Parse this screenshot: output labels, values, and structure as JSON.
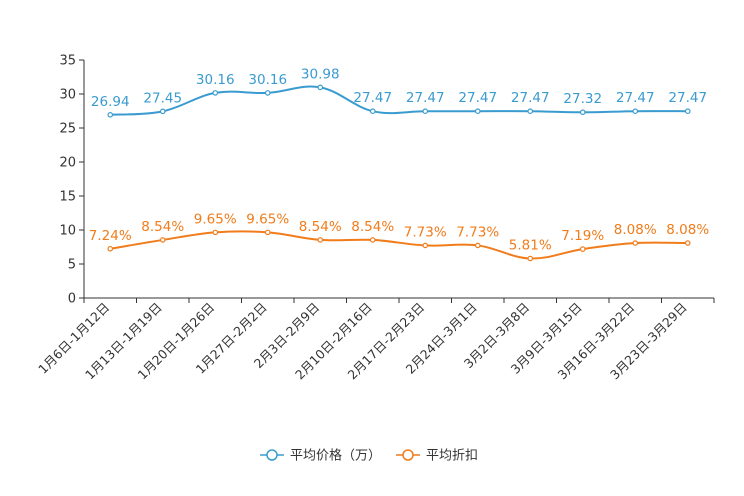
{
  "chart_data": {
    "type": "line",
    "categories": [
      "1月6日-1月12日",
      "1月13日-1月19日",
      "1月20日-1月26日",
      "1月27日-2月2日",
      "2月3日-2月9日",
      "2月10日-2月16日",
      "2月17日-2月23日",
      "2月24日-3月1日",
      "3月2日-3月8日",
      "3月9日-3月15日",
      "3月16日-3月22日",
      "3月23日-3月29日"
    ],
    "ylim": [
      0,
      35
    ],
    "yticks": [
      0,
      5,
      10,
      15,
      20,
      25,
      30,
      35
    ],
    "grid": false,
    "legend_position": "bottom-center",
    "series": [
      {
        "name": "平均价格（万）",
        "color": "#3a9bd0",
        "values": [
          26.94,
          27.45,
          30.16,
          30.16,
          30.98,
          27.47,
          27.47,
          27.47,
          27.47,
          27.32,
          27.47,
          27.47
        ],
        "labels": [
          "26.94",
          "27.45",
          "30.16",
          "30.16",
          "30.98",
          "27.47",
          "27.47",
          "27.47",
          "27.47",
          "27.32",
          "27.47",
          "27.47"
        ]
      },
      {
        "name": "平均折扣",
        "color": "#f07c1b",
        "values": [
          7.24,
          8.54,
          9.65,
          9.65,
          8.54,
          8.54,
          7.73,
          7.73,
          5.81,
          7.19,
          8.08,
          8.08
        ],
        "labels": [
          "7.24%",
          "8.54%",
          "9.65%",
          "9.65%",
          "8.54%",
          "8.54%",
          "7.73%",
          "7.73%",
          "5.81%",
          "7.19%",
          "8.08%",
          "8.08%"
        ]
      }
    ]
  }
}
